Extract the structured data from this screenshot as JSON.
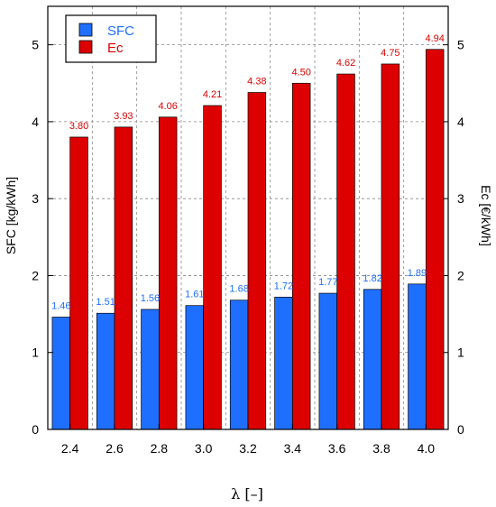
{
  "chart_data": {
    "type": "bar",
    "categories": [
      "2.4",
      "2.6",
      "2.8",
      "3.0",
      "3.2",
      "3.4",
      "3.6",
      "3.8",
      "4.0"
    ],
    "series": [
      {
        "name": "SFC",
        "axis": "left",
        "color": "#1f6fff",
        "values": [
          1.46,
          1.51,
          1.56,
          1.61,
          1.68,
          1.72,
          1.77,
          1.82,
          1.89
        ],
        "labels": [
          "1.46",
          "1.51",
          "1.56",
          "1.61",
          "1.68",
          "1.72",
          "1.77",
          "1.82",
          "1.89"
        ]
      },
      {
        "name": "Ec",
        "axis": "right",
        "color": "#dd0000",
        "values": [
          3.8,
          3.93,
          4.06,
          4.21,
          4.38,
          4.5,
          4.62,
          4.75,
          4.94
        ],
        "labels": [
          "3.80",
          "3.93",
          "4.06",
          "4.21",
          "4.38",
          "4.50",
          "4.62",
          "4.75",
          "4.94"
        ]
      }
    ],
    "xlabel": "λ [–]",
    "ylabel": "SFC [kg/kWh]",
    "y2label": "Ec [€/kWh]",
    "ylim": [
      0,
      5.5
    ],
    "y2lim": [
      0,
      5.5
    ],
    "yticks": [
      "0",
      "1",
      "2",
      "3",
      "4",
      "5"
    ],
    "y2ticks": [
      "0",
      "1",
      "2",
      "3",
      "4",
      "5"
    ],
    "grid": true,
    "legend_position": "top-left"
  }
}
